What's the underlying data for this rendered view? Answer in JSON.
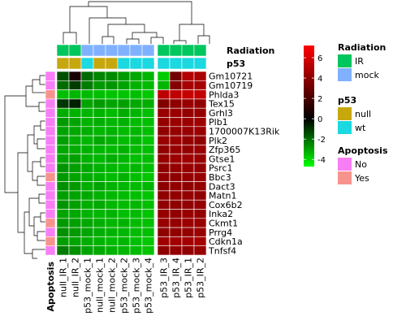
{
  "chart_data": {
    "type": "heatmap",
    "rows": [
      "Gm10721",
      "Gm10719",
      "Phlda3",
      "Tex15",
      "Grhl3",
      "Plb1",
      "1700007K13Rik",
      "Plk2",
      "Zfp365",
      "Gtse1",
      "Psrc1",
      "Bbc3",
      "Dact3",
      "Matn1",
      "Cox6b2",
      "Inka2",
      "Ckmt1",
      "Prrg4",
      "Cdkn1a",
      "Tnfsf4"
    ],
    "columns": [
      "null_IR_1",
      "null_IR_2",
      "p53_mock_1",
      "null_mock_1",
      "null_mock_2",
      "p53_mock_2",
      "p53_mock_3",
      "p53_mock_4",
      "p53_IR_3",
      "p53_IR_4",
      "p53_IR_1",
      "p53_IR_2"
    ],
    "values": [
      [
        -1.0,
        0.3,
        -1.5,
        -2.0,
        -2.1,
        -2.4,
        -2.7,
        -3.0,
        -3.5,
        2.5,
        4.5,
        4.2
      ],
      [
        -1.5,
        -0.7,
        -1.8,
        -2.4,
        -2.3,
        -2.6,
        -2.9,
        -3.1,
        -3.0,
        3.0,
        4.1,
        4.0
      ],
      [
        -3.2,
        -3.0,
        -3.1,
        -3.2,
        -3.3,
        -3.3,
        -3.2,
        -3.4,
        4.8,
        4.9,
        5.1,
        5.0
      ],
      [
        -0.6,
        -0.3,
        -2.6,
        -2.4,
        -2.6,
        -2.5,
        -2.7,
        -2.8,
        2.9,
        3.3,
        3.6,
        3.4
      ],
      [
        -2.8,
        -2.9,
        -3.0,
        -2.9,
        -3.1,
        -2.8,
        -3.0,
        -3.2,
        3.6,
        3.7,
        3.5,
        3.6
      ],
      [
        -2.4,
        -2.6,
        -2.9,
        -2.8,
        -3.0,
        -2.9,
        -3.1,
        -3.2,
        3.5,
        3.6,
        3.7,
        3.8
      ],
      [
        -2.6,
        -2.7,
        -2.8,
        -3.0,
        -2.9,
        -3.1,
        -3.0,
        -3.2,
        3.4,
        3.5,
        3.6,
        3.7
      ],
      [
        -2.5,
        -2.8,
        -3.0,
        -2.7,
        -2.9,
        -3.1,
        -3.0,
        -3.3,
        3.6,
        3.7,
        3.5,
        3.4
      ],
      [
        -2.7,
        -2.8,
        -2.9,
        -3.0,
        -3.1,
        -2.9,
        -3.1,
        -3.2,
        3.4,
        3.6,
        3.5,
        3.7
      ],
      [
        -2.6,
        -2.5,
        -2.9,
        -3.0,
        -2.8,
        -3.0,
        -3.2,
        -3.1,
        3.5,
        3.7,
        3.8,
        3.6
      ],
      [
        -2.3,
        -2.5,
        -2.7,
        -2.9,
        -3.0,
        -3.1,
        -3.0,
        -3.2,
        3.3,
        3.5,
        3.6,
        3.5
      ],
      [
        -2.4,
        -2.6,
        -2.8,
        -2.9,
        -3.1,
        -2.9,
        -3.2,
        -3.3,
        3.4,
        3.3,
        3.5,
        3.6
      ],
      [
        -2.2,
        -2.4,
        -2.8,
        -2.6,
        -2.9,
        -3.0,
        -3.1,
        -3.0,
        3.2,
        3.4,
        3.3,
        3.5
      ],
      [
        -2.5,
        -2.6,
        -2.7,
        -2.9,
        -3.0,
        -3.1,
        -3.2,
        -3.3,
        3.3,
        3.4,
        3.5,
        3.4
      ],
      [
        -2.3,
        -2.5,
        -2.8,
        -2.7,
        -3.0,
        -3.1,
        -3.0,
        -3.2,
        3.4,
        3.3,
        3.4,
        3.5
      ],
      [
        -2.6,
        -2.7,
        -2.9,
        -3.0,
        -2.9,
        -3.2,
        -3.1,
        -3.3,
        3.5,
        3.4,
        3.6,
        3.5
      ],
      [
        -2.4,
        -2.5,
        -2.7,
        -2.8,
        -3.0,
        -2.9,
        -3.1,
        -3.2,
        3.6,
        3.5,
        3.7,
        3.6
      ],
      [
        -2.2,
        -2.4,
        -2.6,
        -2.8,
        -2.9,
        -3.0,
        -3.1,
        -3.2,
        3.3,
        3.4,
        3.5,
        3.7
      ],
      [
        -2.5,
        -2.6,
        -2.8,
        -2.9,
        -3.1,
        -3.0,
        -3.2,
        -3.4,
        3.8,
        3.9,
        4.0,
        4.1
      ],
      [
        -1.8,
        -2.2,
        -2.6,
        -2.7,
        -2.9,
        -3.0,
        -3.1,
        -3.3,
        3.3,
        3.5,
        3.4,
        3.6
      ]
    ],
    "column_annotations": {
      "titles": [
        "Radiation",
        "p53"
      ],
      "Radiation": [
        "IR",
        "IR",
        "mock",
        "mock",
        "mock",
        "mock",
        "mock",
        "mock",
        "IR",
        "IR",
        "IR",
        "IR"
      ],
      "p53": [
        "null",
        "null",
        "wt",
        "null",
        "null",
        "wt",
        "wt",
        "wt",
        "wt",
        "wt",
        "wt",
        "wt"
      ]
    },
    "row_annotations": {
      "title": "Apoptosis",
      "Apoptosis": [
        "No",
        "No",
        "Yes",
        "No",
        "No",
        "No",
        "No",
        "No",
        "No",
        "No",
        "No",
        "Yes",
        "No",
        "No",
        "No",
        "No",
        "Yes",
        "No",
        "Yes",
        "No"
      ]
    },
    "colorbar": {
      "ticks": [
        6,
        4,
        2,
        0,
        -2,
        -4
      ],
      "range": [
        -4.7,
        7.2
      ],
      "low_color": "#00ff00",
      "mid_color": "#000000",
      "high_color": "#ff0000"
    },
    "legends": [
      {
        "title": "Radiation",
        "entries": [
          {
            "label": "IR",
            "color": "#00c65e"
          },
          {
            "label": "mock",
            "color": "#80b1ff"
          }
        ]
      },
      {
        "title": "p53",
        "entries": [
          {
            "label": "null",
            "color": "#c7a70e"
          },
          {
            "label": "wt",
            "color": "#1cd8e0"
          }
        ]
      },
      {
        "title": "Apoptosis",
        "entries": [
          {
            "label": "No",
            "color": "#f77ef5"
          },
          {
            "label": "Yes",
            "color": "#f7938d"
          }
        ]
      }
    ],
    "column_split_after_index": 7
  }
}
